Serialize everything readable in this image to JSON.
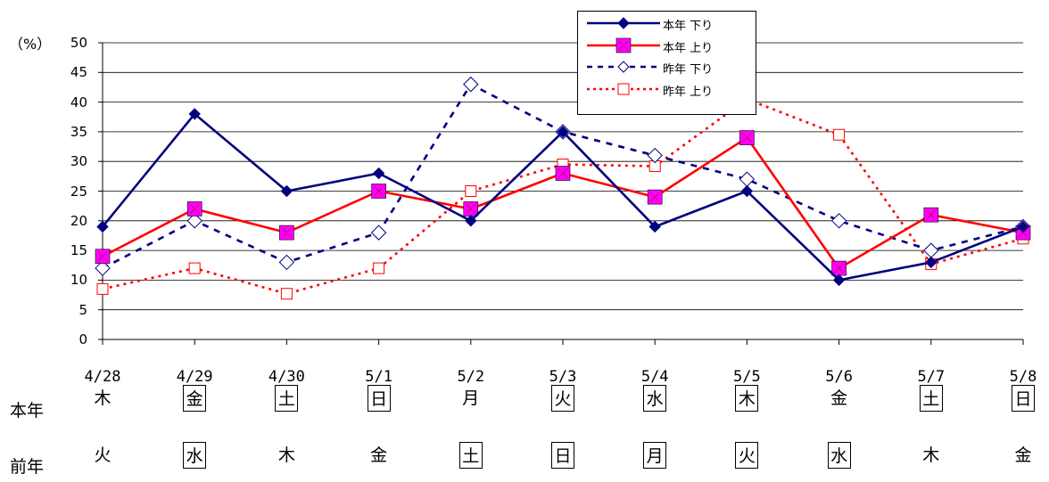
{
  "chart_data": {
    "type": "line",
    "ylabel": "（%）",
    "ylim": [
      0,
      50
    ],
    "yticks": [
      0,
      5,
      10,
      15,
      20,
      25,
      30,
      35,
      40,
      45,
      50
    ],
    "categories": [
      "4/28",
      "4/29",
      "4/30",
      "5/1",
      "5/2",
      "5/3",
      "5/4",
      "5/5",
      "5/6",
      "5/7",
      "5/8"
    ],
    "grid": true,
    "legend": "top-right",
    "series": [
      {
        "name": "本年 下り",
        "color": "#000080",
        "style": "solid",
        "marker": "filled-diamond",
        "values": [
          19,
          38,
          25,
          28,
          20,
          35,
          19,
          25,
          10,
          13,
          19
        ]
      },
      {
        "name": "本年 上り",
        "color": "#ff0000",
        "style": "solid",
        "marker": "magenta-square",
        "values": [
          14,
          22,
          18,
          25,
          22,
          28,
          24,
          34,
          12,
          21,
          18
        ]
      },
      {
        "name": "昨年 下り",
        "color": "#000080",
        "style": "dashed",
        "marker": "open-diamond",
        "values": [
          12,
          20,
          13,
          18,
          43,
          35,
          31,
          27,
          20,
          15,
          19
        ]
      },
      {
        "name": "昨年 上り",
        "color": "#ff0000",
        "style": "dashed",
        "marker": "open-square",
        "values": [
          8.5,
          12,
          7.7,
          12,
          25,
          29.5,
          29.2,
          40.5,
          34.5,
          12.7,
          17
        ]
      }
    ]
  },
  "weekdays": {
    "this_year": {
      "label": "本年",
      "days": [
        "木",
        "金",
        "土",
        "日",
        "月",
        "火",
        "水",
        "木",
        "金",
        "土",
        "日"
      ],
      "holiday": [
        false,
        true,
        true,
        true,
        false,
        true,
        true,
        true,
        false,
        true,
        true
      ]
    },
    "last_year": {
      "label": "前年",
      "days": [
        "火",
        "水",
        "木",
        "金",
        "土",
        "日",
        "月",
        "火",
        "水",
        "木",
        "金"
      ],
      "holiday": [
        false,
        true,
        false,
        false,
        true,
        true,
        true,
        true,
        true,
        false,
        false
      ]
    }
  }
}
